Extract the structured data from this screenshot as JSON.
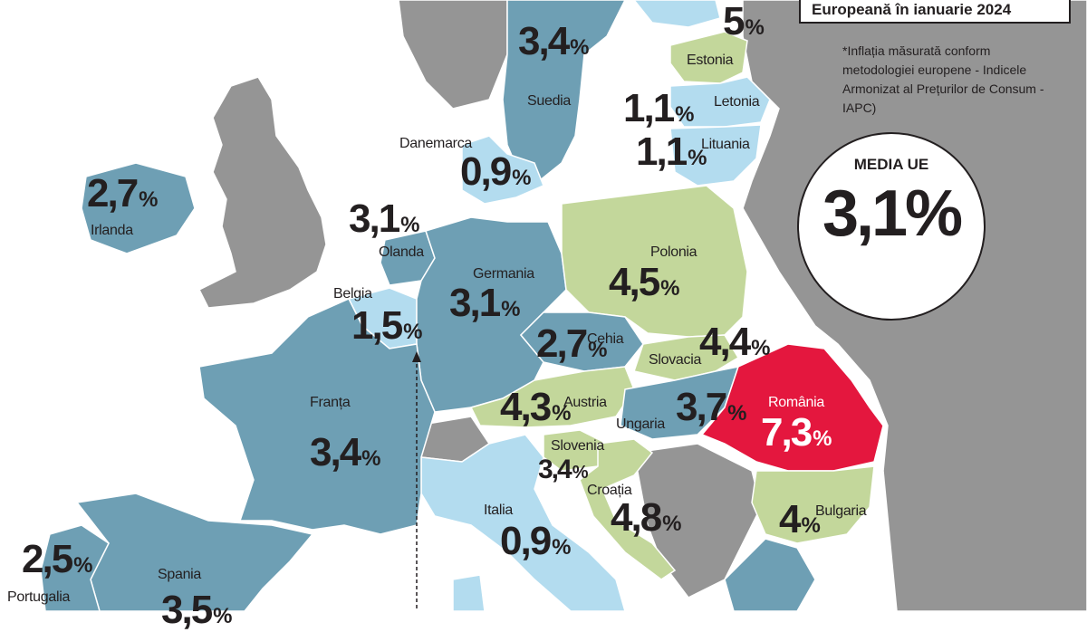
{
  "title_fragment": "Europeană în ianuarie 2024",
  "note": "*Inflația măsurată conform metodologiei europene - Indicele Armonizat al Prețurilor de Consum - IAPC)",
  "eu_average": {
    "label": "MEDIA UE",
    "value": "3,1%"
  },
  "colors": {
    "sea": "#ffffff",
    "non_eu": "#959595",
    "low": "#b3dcef",
    "mid": "#6e9fb4",
    "high": "#c3d79b",
    "romania": "#e4173e",
    "border": "#ffffff"
  },
  "countries": [
    {
      "name": "",
      "value": "5",
      "pct": "%",
      "category": "high"
    },
    {
      "name": "Estonia",
      "value": "",
      "pct": "",
      "category": "high"
    },
    {
      "name": "Suedia",
      "value": "3,4",
      "pct": "%",
      "category": "mid"
    },
    {
      "name": "Letonia",
      "value": "1,1",
      "pct": "%",
      "category": "low"
    },
    {
      "name": "Lituania",
      "value": "1,1",
      "pct": "%",
      "category": "low"
    },
    {
      "name": "Danemarca",
      "value": "0,9",
      "pct": "%",
      "category": "low"
    },
    {
      "name": "Irlanda",
      "value": "2,7",
      "pct": "%",
      "category": "mid"
    },
    {
      "name": "Olanda",
      "value": "3,1",
      "pct": "%",
      "category": "mid"
    },
    {
      "name": "Germania",
      "value": "3,1",
      "pct": "%",
      "category": "mid"
    },
    {
      "name": "Polonia",
      "value": "4,5",
      "pct": "%",
      "category": "high"
    },
    {
      "name": "Belgia",
      "value": "1,5",
      "pct": "%",
      "category": "low"
    },
    {
      "name": "Cehia",
      "value": "2,7",
      "pct": "%",
      "category": "mid"
    },
    {
      "name": "Slovacia",
      "value": "4,4",
      "pct": "%",
      "category": "high"
    },
    {
      "name": "Austria",
      "value": "4,3",
      "pct": "%",
      "category": "high"
    },
    {
      "name": "Ungaria",
      "value": "3,7",
      "pct": "%",
      "category": "mid"
    },
    {
      "name": "România",
      "value": "7,3",
      "pct": "%",
      "category": "romania"
    },
    {
      "name": "Franța",
      "value": "3,4",
      "pct": "%",
      "category": "mid"
    },
    {
      "name": "Slovenia",
      "value": "3,4",
      "pct": "%",
      "category": "high"
    },
    {
      "name": "Croația",
      "value": "4,8",
      "pct": "%",
      "category": "high"
    },
    {
      "name": "Italia",
      "value": "0,9",
      "pct": "%",
      "category": "low"
    },
    {
      "name": "Bulgaria",
      "value": "4",
      "pct": "%",
      "category": "high"
    },
    {
      "name": "Spania",
      "value": "3,5",
      "pct": "%",
      "category": "mid"
    },
    {
      "name": "Portugalia",
      "value": "2,5",
      "pct": "%",
      "category": "mid"
    }
  ]
}
